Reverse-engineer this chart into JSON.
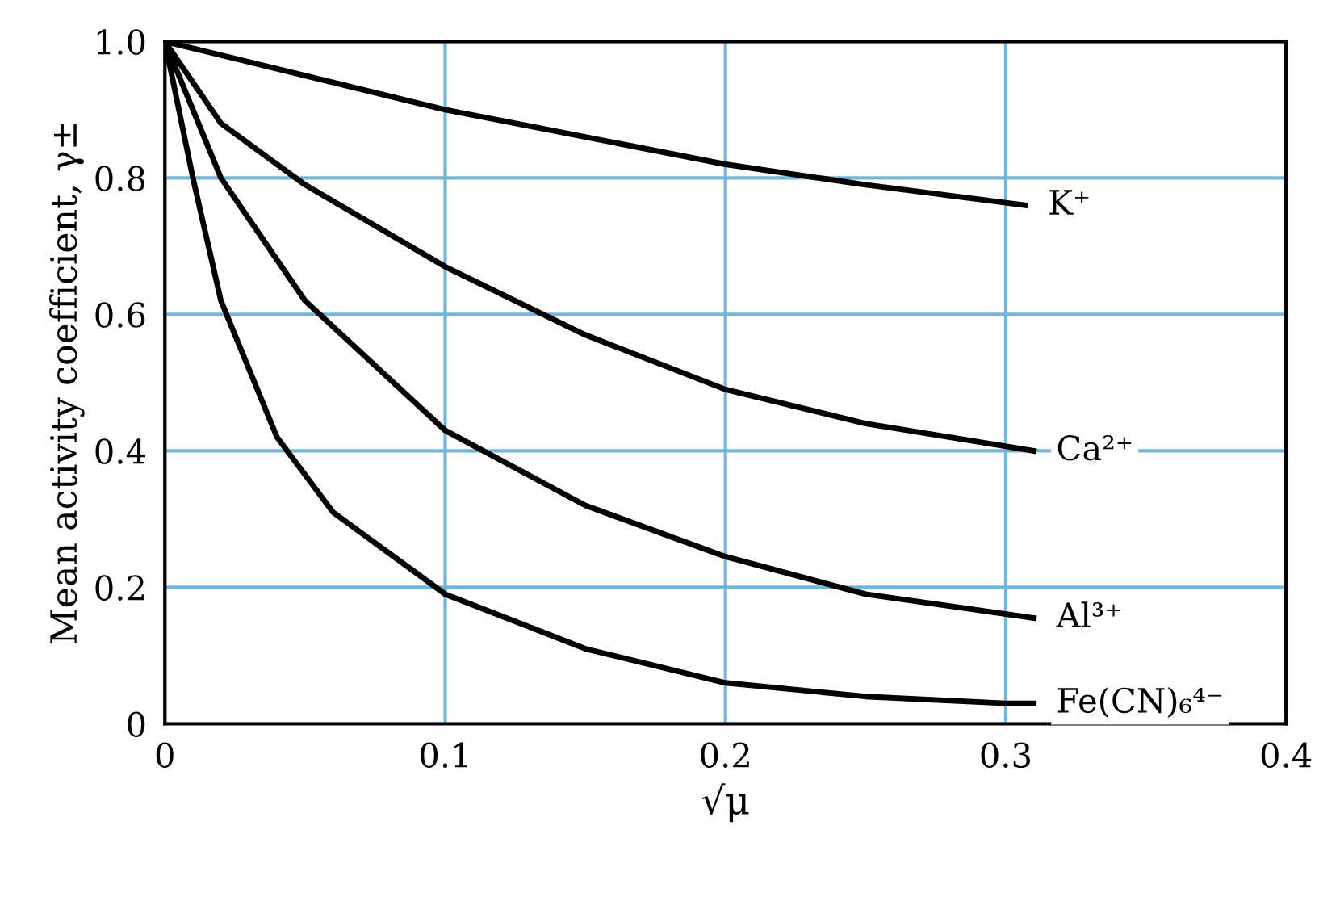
{
  "chart_data": {
    "type": "line",
    "xlabel": "√μ",
    "ylabel": "Mean activity coefficient, γ±",
    "xlim": [
      0,
      0.4
    ],
    "ylim": [
      0,
      1.0
    ],
    "xticks": [
      0,
      0.1,
      0.2,
      0.3,
      0.4
    ],
    "yticks": [
      0,
      0.2,
      0.4,
      0.6,
      0.8,
      {
        "value": 1.0,
        "label": "1.0"
      }
    ],
    "grid": true,
    "marker": "none",
    "line_style": "solid",
    "series": [
      {
        "name": "K⁺",
        "color": "#000000",
        "x": [
          0,
          0.05,
          0.1,
          0.15,
          0.2,
          0.25,
          0.307
        ],
        "values": [
          1.0,
          0.95,
          0.9,
          0.86,
          0.82,
          0.79,
          0.76
        ]
      },
      {
        "name": "Ca²⁺",
        "color": "#000000",
        "x": [
          0,
          0.02,
          0.05,
          0.1,
          0.15,
          0.2,
          0.25,
          0.31
        ],
        "values": [
          1.0,
          0.88,
          0.79,
          0.67,
          0.57,
          0.49,
          0.44,
          0.4
        ]
      },
      {
        "name": "Al³⁺",
        "color": "#000000",
        "x": [
          0,
          0.02,
          0.05,
          0.1,
          0.15,
          0.2,
          0.25,
          0.31
        ],
        "values": [
          1.0,
          0.8,
          0.62,
          0.43,
          0.32,
          0.245,
          0.19,
          0.155
        ]
      },
      {
        "name": "Fe(CN)₆⁴⁻",
        "color": "#000000",
        "x": [
          0,
          0.01,
          0.02,
          0.04,
          0.06,
          0.1,
          0.15,
          0.2,
          0.25,
          0.3,
          0.31
        ],
        "values": [
          1.0,
          0.8,
          0.62,
          0.42,
          0.31,
          0.19,
          0.11,
          0.06,
          0.04,
          0.03,
          0.03
        ]
      }
    ]
  }
}
